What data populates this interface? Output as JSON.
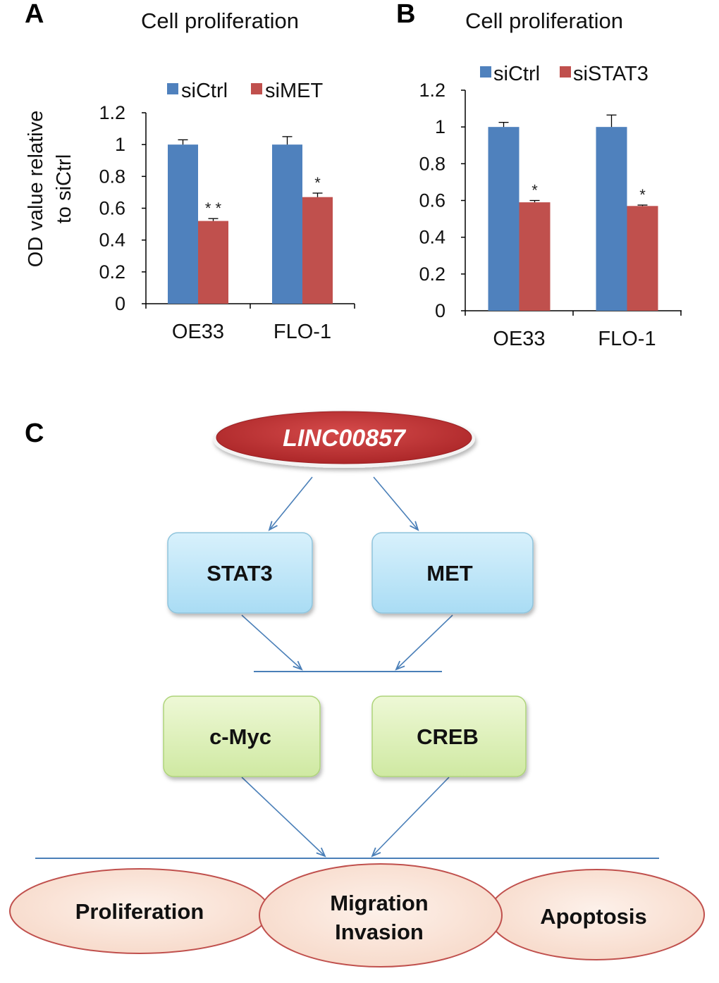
{
  "panels": {
    "a": "A",
    "b": "B",
    "c": "C"
  },
  "colors": {
    "blue": "#4f81bd",
    "red": "#c0504d",
    "arrow": "#4a7fb8",
    "axis": "#000000"
  },
  "chart_data": [
    {
      "type": "bar",
      "title": "Cell proliferation",
      "ylabel": "OD value relative to siCtrl",
      "ylabel_lines": [
        "OD value relative",
        "to siCtrl"
      ],
      "categories": [
        "OE33",
        "FLO-1"
      ],
      "ylim": [
        0,
        1.2
      ],
      "yticks": [
        "0",
        "0.2",
        "0.4",
        "0.6",
        "0.8",
        "1",
        "1.2"
      ],
      "legend_position": "top",
      "series": [
        {
          "name": "siCtrl",
          "values": [
            1.0,
            1.0
          ],
          "errors": [
            0.03,
            0.05
          ]
        },
        {
          "name": "siMET",
          "values": [
            0.52,
            0.67
          ],
          "errors": [
            0.015,
            0.025
          ],
          "significance": [
            "**",
            "*"
          ]
        }
      ]
    },
    {
      "type": "bar",
      "title": "Cell proliferation",
      "ylabel": "",
      "categories": [
        "OE33",
        "FLO-1"
      ],
      "ylim": [
        0,
        1.2
      ],
      "yticks": [
        "0",
        "0.2",
        "0.4",
        "0.6",
        "0.8",
        "1",
        "1.2"
      ],
      "legend_position": "top",
      "series": [
        {
          "name": "siCtrl",
          "values": [
            1.0,
            1.0
          ],
          "errors": [
            0.025,
            0.065
          ]
        },
        {
          "name": "siSTAT3",
          "values": [
            0.59,
            0.57
          ],
          "errors": [
            0.01,
            0.005
          ],
          "significance": [
            "*",
            "*"
          ]
        }
      ]
    }
  ],
  "diagram": {
    "top": "LINC00857",
    "level1": [
      "STAT3",
      "MET"
    ],
    "level2": [
      "c-Myc",
      "CREB"
    ],
    "outcomes": [
      {
        "lines": [
          "Proliferation"
        ]
      },
      {
        "lines": [
          "Migration",
          "Invasion"
        ]
      },
      {
        "lines": [
          "Apoptosis"
        ]
      }
    ]
  }
}
